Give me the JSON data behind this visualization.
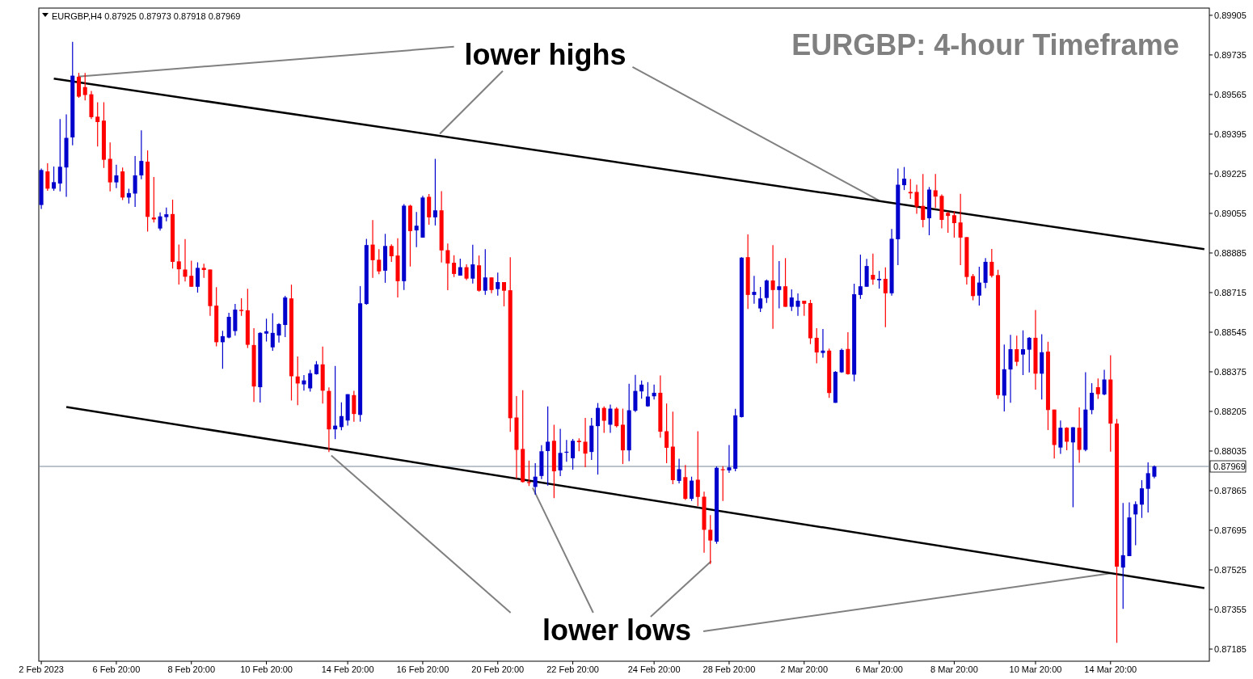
{
  "chart_data": {
    "type": "candlestick",
    "title": "EURGBP: 4-hour Timeframe",
    "subtitle": "EURGBP,H4  0.87925 0.87973 0.87918 0.87969",
    "annotations": [
      {
        "text": "lower highs",
        "x": "6 Mar 20:00",
        "y": 0.8911
      },
      {
        "text": "lower lows",
        "x": "14 Mar 20:00",
        "y": 0.8751
      }
    ],
    "categories": [
      "2 Feb 2023",
      null,
      null,
      null,
      null,
      null,
      null,
      null,
      null,
      null,
      null,
      null,
      "6 Feb 20:00",
      null,
      null,
      null,
      null,
      null,
      null,
      null,
      null,
      null,
      null,
      null,
      "8 Feb 20:00",
      null,
      null,
      null,
      null,
      null,
      null,
      null,
      null,
      null,
      null,
      null,
      "10 Feb 20:00",
      null,
      null,
      null,
      null,
      null,
      null,
      null,
      null,
      null,
      null,
      null,
      null,
      "14 Feb 20:00",
      null,
      null,
      null,
      null,
      null,
      null,
      null,
      null,
      null,
      null,
      null,
      "16 Feb 20:00",
      null,
      null,
      null,
      null,
      null,
      null,
      null,
      null,
      null,
      null,
      null,
      "20 Feb 20:00",
      null,
      null,
      null,
      null,
      null,
      null,
      null,
      null,
      null,
      null,
      null,
      "22 Feb 20:00",
      null,
      null,
      null,
      null,
      null,
      null,
      null,
      null,
      null,
      null,
      null,
      null,
      "24 Feb 20:00",
      null,
      null,
      null,
      null,
      null,
      null,
      null,
      null,
      null,
      null,
      null,
      "28 Feb 20:00",
      null,
      null,
      null,
      null,
      null,
      null,
      null,
      null,
      null,
      null,
      null,
      "2 Mar 20:00",
      null,
      null,
      null,
      null,
      null,
      null,
      null,
      null,
      null,
      null,
      null,
      "6 Mar 20:00",
      null,
      null,
      null,
      null,
      null,
      null,
      null,
      null,
      null,
      null,
      null,
      "8 Mar 20:00",
      null,
      null,
      null,
      null,
      null,
      null,
      null,
      null,
      null,
      null,
      null,
      null,
      "10 Mar 20:00",
      null,
      null,
      null,
      null,
      null,
      null,
      null,
      null,
      null,
      null,
      null,
      "14 Mar 20:00",
      null,
      null,
      null,
      null,
      null,
      null,
      null,
      null,
      null,
      null,
      null,
      null,
      null,
      null,
      null
    ],
    "ohlc": [
      [
        0.89091,
        0.89247,
        0.89074,
        0.89241
      ],
      [
        0.89235,
        0.8927,
        0.89152,
        0.89161
      ],
      [
        0.89161,
        0.89256,
        0.89152,
        0.89189
      ],
      [
        0.89183,
        0.8946,
        0.89149,
        0.89255
      ],
      [
        0.89252,
        0.8948,
        0.89126,
        0.89379
      ],
      [
        0.89381,
        0.89791,
        0.89347,
        0.89646
      ],
      [
        0.89641,
        0.89658,
        0.89551,
        0.89556
      ],
      [
        0.89597,
        0.89658,
        0.8954,
        0.89563
      ],
      [
        0.89566,
        0.8958,
        0.8946,
        0.89468
      ],
      [
        0.8947,
        0.89532,
        0.89342,
        0.89447
      ],
      [
        0.89453,
        0.89532,
        0.8925,
        0.89285
      ],
      [
        0.89289,
        0.89359,
        0.89149,
        0.89188
      ],
      [
        0.89188,
        0.89264,
        0.89163,
        0.89218
      ],
      [
        0.89235,
        0.89252,
        0.89112,
        0.89123
      ],
      [
        0.89123,
        0.89161,
        0.89097,
        0.89142
      ],
      [
        0.8914,
        0.89301,
        0.89083,
        0.89218
      ],
      [
        0.89218,
        0.89411,
        0.89201,
        0.8928
      ],
      [
        0.89277,
        0.89325,
        0.88977,
        0.8904
      ],
      [
        0.89037,
        0.89211,
        0.89016,
        0.89029
      ],
      [
        0.8899,
        0.89059,
        0.88981,
        0.89042
      ],
      [
        0.89039,
        0.8908,
        0.89021,
        0.89051
      ],
      [
        0.89052,
        0.89114,
        0.88818,
        0.88847
      ],
      [
        0.88849,
        0.88921,
        0.8875,
        0.88815
      ],
      [
        0.88814,
        0.88945,
        0.88763,
        0.88783
      ],
      [
        0.88787,
        0.88852,
        0.8874,
        0.8874
      ],
      [
        0.8874,
        0.88845,
        0.88715,
        0.88821
      ],
      [
        0.88821,
        0.88839,
        0.88778,
        0.88812
      ],
      [
        0.88814,
        0.88814,
        0.88615,
        0.88657
      ],
      [
        0.88659,
        0.88738,
        0.88484,
        0.88502
      ],
      [
        0.88502,
        0.88551,
        0.88388,
        0.88528
      ],
      [
        0.88522,
        0.88628,
        0.88519,
        0.88611
      ],
      [
        0.8855,
        0.88666,
        0.8853,
        0.88642
      ],
      [
        0.88641,
        0.88691,
        0.88615,
        0.88636
      ],
      [
        0.88639,
        0.88731,
        0.88477,
        0.88491
      ],
      [
        0.8849,
        0.88562,
        0.88246,
        0.88312
      ],
      [
        0.88309,
        0.88545,
        0.88243,
        0.88542
      ],
      [
        0.88539,
        0.88603,
        0.88505,
        0.88549
      ],
      [
        0.8848,
        0.88626,
        0.88465,
        0.88542
      ],
      [
        0.88531,
        0.88584,
        0.88501,
        0.8858
      ],
      [
        0.88576,
        0.88701,
        0.88524,
        0.88694
      ],
      [
        0.8869,
        0.88749,
        0.88252,
        0.88356
      ],
      [
        0.88355,
        0.88441,
        0.88232,
        0.88325
      ],
      [
        0.88321,
        0.88361,
        0.88294,
        0.88338
      ],
      [
        0.88304,
        0.88384,
        0.8829,
        0.88369
      ],
      [
        0.88365,
        0.88421,
        0.88363,
        0.88407
      ],
      [
        0.88407,
        0.88483,
        0.88239,
        0.88294
      ],
      [
        0.88293,
        0.88308,
        0.88031,
        0.88128
      ],
      [
        0.88128,
        0.884,
        0.88086,
        0.88144
      ],
      [
        0.88138,
        0.88244,
        0.88124,
        0.88185
      ],
      [
        0.88166,
        0.88279,
        0.88144,
        0.88279
      ],
      [
        0.88275,
        0.88293,
        0.88161,
        0.88194
      ],
      [
        0.8819,
        0.88743,
        0.88161,
        0.88669
      ],
      [
        0.88666,
        0.88946,
        0.88663,
        0.88919
      ],
      [
        0.88921,
        0.89026,
        0.88778,
        0.88854
      ],
      [
        0.88856,
        0.88901,
        0.88794,
        0.88806
      ],
      [
        0.88809,
        0.88967,
        0.88757,
        0.88915
      ],
      [
        0.88915,
        0.88922,
        0.88847,
        0.88871
      ],
      [
        0.88874,
        0.88948,
        0.88694,
        0.88764
      ],
      [
        0.88764,
        0.89095,
        0.88726,
        0.89088
      ],
      [
        0.89088,
        0.89092,
        0.88827,
        0.88979
      ],
      [
        0.88982,
        0.89061,
        0.8891,
        0.89002
      ],
      [
        0.88951,
        0.8913,
        0.88951,
        0.89123
      ],
      [
        0.89126,
        0.89138,
        0.89006,
        0.89038
      ],
      [
        0.89038,
        0.89289,
        0.89003,
        0.89068
      ],
      [
        0.89068,
        0.8915,
        0.88844,
        0.88896
      ],
      [
        0.88897,
        0.88926,
        0.88725,
        0.8884
      ],
      [
        0.88843,
        0.88875,
        0.88782,
        0.88795
      ],
      [
        0.88788,
        0.88861,
        0.88788,
        0.88824
      ],
      [
        0.88824,
        0.88836,
        0.88769,
        0.88775
      ],
      [
        0.88775,
        0.8892,
        0.88754,
        0.88836
      ],
      [
        0.88832,
        0.88874,
        0.88719,
        0.88723
      ],
      [
        0.88723,
        0.88901,
        0.88705,
        0.8878
      ],
      [
        0.8878,
        0.8878,
        0.88712,
        0.88726
      ],
      [
        0.8873,
        0.88801,
        0.88702,
        0.8876
      ],
      [
        0.8876,
        0.8876,
        0.88656,
        0.88723
      ],
      [
        0.88725,
        0.88867,
        0.88117,
        0.88176
      ],
      [
        0.88179,
        0.88271,
        0.87916,
        0.8804
      ],
      [
        0.88044,
        0.88296,
        0.879,
        0.87902
      ],
      [
        0.87902,
        0.87994,
        0.87885,
        0.879
      ],
      [
        0.87881,
        0.87983,
        0.87848,
        0.87925
      ],
      [
        0.87928,
        0.8806,
        0.87914,
        0.88034
      ],
      [
        0.88035,
        0.88227,
        0.87887,
        0.88075
      ],
      [
        0.88079,
        0.88148,
        0.87833,
        0.87948
      ],
      [
        0.87952,
        0.8813,
        0.87927,
        0.88027
      ],
      [
        0.88028,
        0.88083,
        0.87989,
        0.88032
      ],
      [
        0.88004,
        0.88087,
        0.87955,
        0.88079
      ],
      [
        0.88079,
        0.8809,
        0.88034,
        0.88073
      ],
      [
        0.88075,
        0.88177,
        0.87966,
        0.88024
      ],
      [
        0.88031,
        0.88177,
        0.87997,
        0.88144
      ],
      [
        0.88142,
        0.88241,
        0.87934,
        0.8822
      ],
      [
        0.8822,
        0.88227,
        0.88113,
        0.88165
      ],
      [
        0.88148,
        0.88234,
        0.88113,
        0.88217
      ],
      [
        0.88217,
        0.88223,
        0.88136,
        0.88142
      ],
      [
        0.88148,
        0.88217,
        0.87979,
        0.88038
      ],
      [
        0.88038,
        0.88324,
        0.87992,
        0.8821
      ],
      [
        0.88208,
        0.88362,
        0.88202,
        0.88293
      ],
      [
        0.88291,
        0.88338,
        0.8826,
        0.8832
      ],
      [
        0.88227,
        0.88331,
        0.88225,
        0.88269
      ],
      [
        0.8827,
        0.8832,
        0.88256,
        0.88285
      ],
      [
        0.88285,
        0.88359,
        0.88092,
        0.88118
      ],
      [
        0.8812,
        0.88239,
        0.87983,
        0.88049
      ],
      [
        0.88054,
        0.88204,
        0.87893,
        0.8791
      ],
      [
        0.87907,
        0.88002,
        0.87896,
        0.87957
      ],
      [
        0.87923,
        0.87975,
        0.87825,
        0.8783
      ],
      [
        0.8783,
        0.87925,
        0.87821,
        0.87908
      ],
      [
        0.87912,
        0.8812,
        0.87798,
        0.87838
      ],
      [
        0.87839,
        0.87861,
        0.87599,
        0.87697
      ],
      [
        0.87697,
        0.8776,
        0.8755,
        0.87651
      ],
      [
        0.87646,
        0.87969,
        0.87637,
        0.87963
      ],
      [
        0.87957,
        0.8797,
        0.87821,
        0.87955
      ],
      [
        0.87952,
        0.88061,
        0.87941,
        0.87965
      ],
      [
        0.87959,
        0.88216,
        0.87948,
        0.88188
      ],
      [
        0.88181,
        0.88867,
        0.88179,
        0.88865
      ],
      [
        0.88867,
        0.88965,
        0.88645,
        0.88705
      ],
      [
        0.88705,
        0.88787,
        0.88667,
        0.88718
      ],
      [
        0.88647,
        0.88739,
        0.88632,
        0.8869
      ],
      [
        0.88692,
        0.88771,
        0.88671,
        0.88767
      ],
      [
        0.88767,
        0.88919,
        0.8856,
        0.88726
      ],
      [
        0.88726,
        0.8885,
        0.88647,
        0.88742
      ],
      [
        0.88742,
        0.88863,
        0.88654,
        0.88654
      ],
      [
        0.88654,
        0.88729,
        0.88636,
        0.88694
      ],
      [
        0.88654,
        0.88711,
        0.88615,
        0.8868
      ],
      [
        0.8868,
        0.8868,
        0.88615,
        0.88667
      ],
      [
        0.8867,
        0.88684,
        0.88494,
        0.88519
      ],
      [
        0.88521,
        0.88562,
        0.88411,
        0.88458
      ],
      [
        0.88456,
        0.88559,
        0.88436,
        0.88466
      ],
      [
        0.88466,
        0.88475,
        0.88263,
        0.88284
      ],
      [
        0.88242,
        0.88378,
        0.88242,
        0.88375
      ],
      [
        0.88373,
        0.88475,
        0.88371,
        0.88469
      ],
      [
        0.88473,
        0.88545,
        0.88363,
        0.88365
      ],
      [
        0.88363,
        0.88753,
        0.88334,
        0.88708
      ],
      [
        0.88705,
        0.88878,
        0.88688,
        0.88742
      ],
      [
        0.8874,
        0.8886,
        0.8874,
        0.88829
      ],
      [
        0.88791,
        0.88882,
        0.88749,
        0.88771
      ],
      [
        0.88768,
        0.88808,
        0.88732,
        0.88774
      ],
      [
        0.88774,
        0.88823,
        0.88567,
        0.88712
      ],
      [
        0.88712,
        0.88988,
        0.88702,
        0.88946
      ],
      [
        0.88944,
        0.89247,
        0.88833,
        0.89178
      ],
      [
        0.89176,
        0.89254,
        0.89155,
        0.89204
      ],
      [
        0.89147,
        0.89202,
        0.89117,
        0.89141
      ],
      [
        0.89147,
        0.89178,
        0.89053,
        0.89084
      ],
      [
        0.89087,
        0.89224,
        0.88995,
        0.89027
      ],
      [
        0.89034,
        0.89168,
        0.88961,
        0.89157
      ],
      [
        0.89154,
        0.89224,
        0.89078,
        0.89127
      ],
      [
        0.8913,
        0.89136,
        0.88991,
        0.89027
      ],
      [
        0.89057,
        0.89063,
        0.88972,
        0.89044
      ],
      [
        0.89047,
        0.89064,
        0.88951,
        0.89013
      ],
      [
        0.89016,
        0.89139,
        0.88833,
        0.88951
      ],
      [
        0.88953,
        0.88953,
        0.8875,
        0.88782
      ],
      [
        0.88786,
        0.88795,
        0.88682,
        0.887
      ],
      [
        0.88702,
        0.88826,
        0.88659,
        0.88758
      ],
      [
        0.88757,
        0.88863,
        0.88734,
        0.88847
      ],
      [
        0.88847,
        0.88902,
        0.8878,
        0.88787
      ],
      [
        0.8879,
        0.88813,
        0.88259,
        0.88275
      ],
      [
        0.88273,
        0.88492,
        0.88205,
        0.88386
      ],
      [
        0.88385,
        0.88534,
        0.88242,
        0.88472
      ],
      [
        0.88472,
        0.8853,
        0.884,
        0.88418
      ],
      [
        0.88449,
        0.88553,
        0.88361,
        0.88472
      ],
      [
        0.8847,
        0.88524,
        0.88372,
        0.88521
      ],
      [
        0.88521,
        0.8864,
        0.88299,
        0.88367
      ],
      [
        0.88367,
        0.88536,
        0.88256,
        0.88459
      ],
      [
        0.88462,
        0.88504,
        0.88125,
        0.88211
      ],
      [
        0.88213,
        0.88213,
        0.88003,
        0.88061
      ],
      [
        0.8805,
        0.88166,
        0.88023,
        0.88135
      ],
      [
        0.88135,
        0.88137,
        0.88038,
        0.88075
      ],
      [
        0.88072,
        0.88137,
        0.87794,
        0.88137
      ],
      [
        0.88135,
        0.88222,
        0.87985,
        0.8804
      ],
      [
        0.8804,
        0.88373,
        0.88034,
        0.88213
      ],
      [
        0.88211,
        0.88326,
        0.88193,
        0.88285
      ],
      [
        0.88309,
        0.88346,
        0.88259,
        0.88279
      ],
      [
        0.88278,
        0.88384,
        0.88274,
        0.88342
      ],
      [
        0.88342,
        0.88446,
        0.88032,
        0.88153
      ],
      [
        0.88153,
        0.88173,
        0.87212,
        0.87539
      ],
      [
        0.87535,
        0.87812,
        0.87358,
        0.87588
      ],
      [
        0.87584,
        0.87815,
        0.87584,
        0.8775
      ],
      [
        0.87763,
        0.87819,
        0.87631,
        0.87807
      ],
      [
        0.87805,
        0.8791,
        0.87748,
        0.87875
      ],
      [
        0.87873,
        0.87986,
        0.87771,
        0.8794
      ],
      [
        0.87925,
        0.87973,
        0.87918,
        0.87969
      ],
      null,
      null,
      null,
      null,
      null,
      null,
      null,
      null
    ],
    "colors": [
      "#0000cd",
      "#ff0000",
      "#0000cd",
      "#0000cd",
      "#0000cd",
      "#0000cd",
      "#ff0000",
      "#ff0000",
      "#ff0000",
      "#ff0000",
      "#ff0000",
      "#ff0000",
      "#0000cd",
      "#ff0000",
      "#0000cd",
      "#0000cd",
      "#0000cd",
      "#ff0000",
      "#ff0000",
      "#0000cd",
      "#0000cd",
      "#ff0000",
      "#ff0000",
      "#ff0000",
      "#ff0000",
      "#0000cd",
      "#ff0000",
      "#ff0000",
      "#ff0000",
      "#0000cd",
      "#0000cd",
      "#0000cd",
      "#ff0000",
      "#ff0000",
      "#ff0000",
      "#0000cd",
      "#0000cd",
      "#0000cd",
      "#0000cd",
      "#0000cd",
      "#ff0000",
      "#ff0000",
      "#0000cd",
      "#0000cd",
      "#0000cd",
      "#ff0000",
      "#ff0000",
      "#0000cd",
      "#0000cd",
      "#0000cd",
      "#ff0000",
      "#0000cd",
      "#0000cd",
      "#ff0000",
      "#ff0000",
      "#0000cd",
      "#ff0000",
      "#ff0000",
      "#0000cd",
      "#ff0000",
      "#0000cd",
      "#0000cd",
      "#ff0000",
      "#0000cd",
      "#ff0000",
      "#ff0000",
      "#ff0000",
      "#0000cd",
      "#ff0000",
      "#0000cd",
      "#ff0000",
      "#0000cd",
      "#ff0000",
      "#0000cd",
      "#ff0000",
      "#ff0000",
      "#ff0000",
      "#ff0000",
      "#ff0000",
      "#0000cd",
      "#0000cd",
      "#0000cd",
      "#ff0000",
      "#0000cd",
      "#0000cd",
      "#0000cd",
      "#ff0000",
      "#ff0000",
      "#0000cd",
      "#0000cd",
      "#ff0000",
      "#0000cd",
      "#ff0000",
      "#ff0000",
      "#0000cd",
      "#0000cd",
      "#0000cd",
      "#0000cd",
      "#0000cd",
      "#ff0000",
      "#ff0000",
      "#ff0000",
      "#0000cd",
      "#ff0000",
      "#0000cd",
      "#ff0000",
      "#ff0000",
      "#ff0000",
      "#0000cd",
      "#ff0000",
      "#0000cd",
      "#0000cd",
      "#0000cd",
      "#ff0000",
      "#0000cd",
      "#0000cd",
      "#0000cd",
      "#ff0000",
      "#0000cd",
      "#ff0000",
      "#0000cd",
      "#0000cd",
      "#ff0000",
      "#ff0000",
      "#ff0000",
      "#0000cd",
      "#ff0000",
      "#0000cd",
      "#0000cd",
      "#ff0000",
      "#0000cd",
      "#0000cd",
      "#0000cd",
      "#ff0000",
      "#0000cd",
      "#ff0000",
      "#0000cd",
      "#0000cd",
      "#0000cd",
      "#ff0000",
      "#ff0000",
      "#ff0000",
      "#0000cd",
      "#ff0000",
      "#ff0000",
      "#ff0000",
      "#ff0000",
      "#ff0000",
      "#ff0000",
      "#ff0000",
      "#0000cd",
      "#0000cd",
      "#ff0000",
      "#ff0000",
      "#0000cd",
      "#0000cd",
      "#ff0000",
      "#0000cd",
      "#0000cd",
      "#ff0000",
      "#0000cd",
      "#ff0000",
      "#ff0000",
      "#0000cd",
      "#ff0000",
      "#0000cd",
      "#ff0000",
      "#0000cd",
      "#0000cd",
      "#ff0000",
      "#0000cd",
      "#ff0000",
      "#ff0000",
      "#0000cd",
      "#0000cd",
      "#0000cd",
      "#0000cd",
      "#0000cd",
      "#0000cd",
      null,
      null,
      null,
      null,
      null,
      null,
      null,
      null
    ],
    "ylim": [
      0.87133,
      0.89936
    ],
    "yticks": [
      0.89905,
      0.89735,
      0.89565,
      0.89395,
      0.89225,
      0.89055,
      0.88885,
      0.88715,
      0.88545,
      0.88375,
      0.88205,
      0.88035,
      0.87865,
      0.87695,
      0.87525,
      0.87355,
      0.87185
    ],
    "ref_lines": [
      {
        "axis": "y",
        "value": 0.87969,
        "label": "0.87969",
        "color": "#778899"
      }
    ],
    "series": [
      {
        "type": "line",
        "color": "#000000",
        "values": [
          null,
          null,
          0.89633,
          null,
          null,
          null,
          null,
          null,
          null,
          null,
          null,
          null,
          null,
          null,
          null,
          null,
          null,
          null,
          null,
          null,
          null,
          null,
          null,
          null,
          null,
          null,
          null,
          null,
          null,
          null,
          null,
          null,
          null,
          null,
          null,
          null,
          null,
          null,
          null,
          null,
          null,
          null,
          null,
          null,
          null,
          null,
          null,
          null,
          null,
          null,
          null,
          null,
          null,
          null,
          null,
          null,
          null,
          null,
          null,
          null,
          null,
          null,
          null,
          null,
          null,
          null,
          null,
          null,
          null,
          null,
          null,
          null,
          null,
          null,
          null,
          null,
          null,
          null,
          null,
          null,
          null,
          null,
          null,
          null,
          null,
          null,
          null,
          null,
          null,
          null,
          null,
          null,
          null,
          null,
          null,
          null,
          null,
          null,
          null,
          null,
          null,
          null,
          null,
          null,
          null,
          null,
          null,
          null,
          null,
          null,
          null,
          null,
          null,
          null,
          null,
          null,
          null,
          null,
          null,
          null,
          null,
          null,
          null,
          null,
          null,
          null,
          null,
          null,
          null,
          null,
          null,
          null,
          null,
          null,
          null,
          null,
          null,
          null,
          null,
          null,
          null,
          null,
          null,
          null,
          null,
          null,
          null,
          null,
          null,
          null,
          null,
          null,
          null,
          null,
          null,
          null,
          null,
          null,
          null,
          null,
          null,
          null,
          null,
          null,
          null,
          null,
          null,
          null,
          null,
          null,
          null,
          null,
          null,
          null,
          null,
          null,
          null,
          null,
          null,
          null,
          null,
          null,
          null,
          null,
          null,
          null,
          0.88901
        ]
      },
      {
        "type": "line",
        "color": "#000000",
        "values": [
          null,
          null,
          null,
          null,
          0.88224,
          null,
          null,
          null,
          null,
          null,
          null,
          null,
          null,
          null,
          null,
          null,
          null,
          null,
          null,
          null,
          null,
          null,
          null,
          null,
          null,
          null,
          null,
          null,
          null,
          null,
          null,
          null,
          null,
          null,
          null,
          null,
          null,
          null,
          null,
          null,
          null,
          null,
          null,
          null,
          null,
          null,
          null,
          null,
          null,
          null,
          null,
          null,
          null,
          null,
          null,
          null,
          null,
          null,
          null,
          null,
          null,
          null,
          null,
          null,
          null,
          null,
          null,
          null,
          null,
          null,
          null,
          null,
          null,
          null,
          null,
          null,
          null,
          null,
          null,
          null,
          null,
          null,
          null,
          null,
          null,
          null,
          null,
          null,
          null,
          null,
          null,
          null,
          null,
          null,
          null,
          null,
          null,
          null,
          null,
          null,
          null,
          null,
          null,
          null,
          null,
          null,
          null,
          null,
          null,
          null,
          null,
          null,
          null,
          null,
          null,
          null,
          null,
          null,
          null,
          null,
          null,
          null,
          null,
          null,
          null,
          null,
          null,
          null,
          null,
          null,
          null,
          null,
          null,
          null,
          null,
          null,
          null,
          null,
          null,
          null,
          null,
          null,
          null,
          null,
          null,
          null,
          null,
          null,
          null,
          null,
          null,
          null,
          null,
          null,
          null,
          null,
          null,
          null,
          null,
          null,
          null,
          null,
          null,
          null,
          null,
          null,
          null,
          null,
          null,
          null,
          null,
          null,
          null,
          null,
          null,
          null,
          null,
          null,
          null,
          null,
          null,
          null,
          null,
          null,
          null,
          null,
          0.87447
        ]
      }
    ]
  }
}
